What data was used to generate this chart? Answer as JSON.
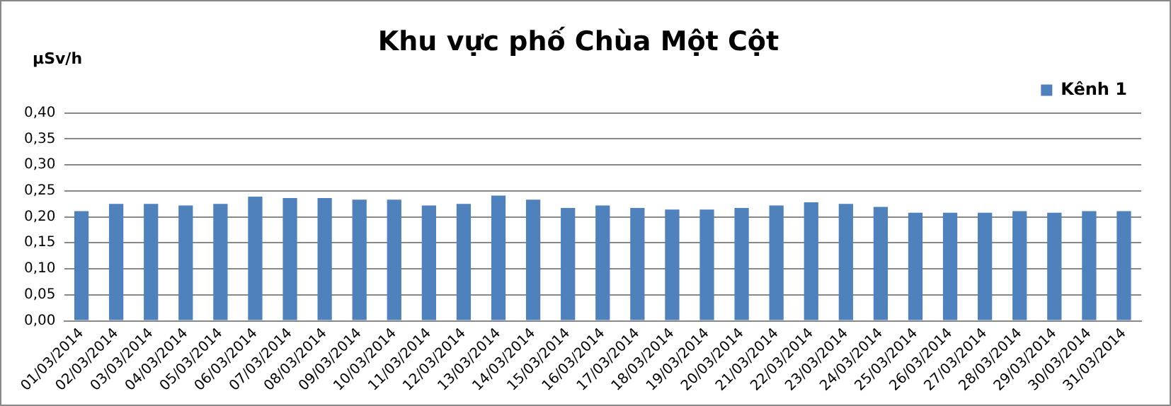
{
  "chart_data": {
    "type": "bar",
    "title": "Khu vực phố Chùa Một Cột",
    "ylabel": "µSv/h",
    "categories": [
      "01/03/2014",
      "02/03/2014",
      "03/03/2014",
      "04/03/2014",
      "05/03/2014",
      "06/03/2014",
      "07/03/2014",
      "08/03/2014",
      "09/03/2014",
      "10/03/2014",
      "11/03/2014",
      "12/03/2014",
      "13/03/2014",
      "14/03/2014",
      "15/03/2014",
      "16/03/2014",
      "17/03/2014",
      "18/03/2014",
      "19/03/2014",
      "20/03/2014",
      "21/03/2014",
      "22/03/2014",
      "23/03/2014",
      "24/03/2014",
      "25/03/2014",
      "26/03/2014",
      "27/03/2014",
      "28/03/2014",
      "29/03/2014",
      "30/03/2014",
      "31/03/2014"
    ],
    "series": [
      {
        "name": "Kênh 1",
        "color": "#4f81bd",
        "values": [
          0.211,
          0.225,
          0.225,
          0.222,
          0.225,
          0.239,
          0.236,
          0.236,
          0.233,
          0.233,
          0.222,
          0.225,
          0.241,
          0.233,
          0.217,
          0.222,
          0.217,
          0.214,
          0.214,
          0.217,
          0.222,
          0.228,
          0.225,
          0.219,
          0.208,
          0.208,
          0.208,
          0.211,
          0.208,
          0.211,
          0.211
        ]
      }
    ],
    "ylim": [
      0,
      0.4
    ],
    "yticks": [
      {
        "value": 0,
        "label": "0,00"
      },
      {
        "value": 0.05,
        "label": "0,05"
      },
      {
        "value": 0.1,
        "label": "0,10"
      },
      {
        "value": 0.15,
        "label": "0,15"
      },
      {
        "value": 0.2,
        "label": "0,20"
      },
      {
        "value": 0.25,
        "label": "0,25"
      },
      {
        "value": 0.3,
        "label": "0,30"
      },
      {
        "value": 0.35,
        "label": "0,35"
      },
      {
        "value": 0.4,
        "label": "0,40"
      }
    ],
    "grid": "y",
    "legend": "top right"
  }
}
